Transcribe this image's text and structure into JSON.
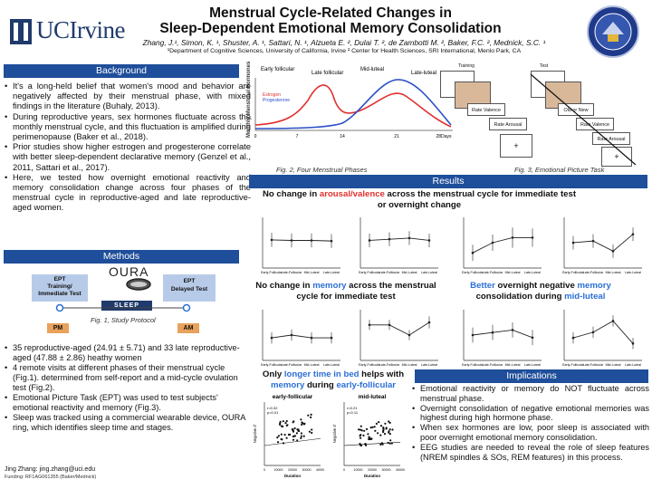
{
  "header": {
    "title_line1": "Menstrual Cycle-Related Changes in",
    "title_line2": "Sleep-Dependent Emotional Memory Consolidation",
    "authors": "Zhang, J.¹, Simon, K. ¹, Shuster, A. ¹, Sattari, N. ¹, Alzueta E. ², Dulai T. ², de Zambotti M. ², Baker, F.C. ², Mednick, S.C. ¹",
    "affiliation": "¹Department of Cognitive Sciences, University of California, Irvine ² Center for Health Sciences, SRI International, Menlo Park, CA",
    "logo_text": "UCIrvine"
  },
  "background": {
    "heading": "Background",
    "bullets": [
      "It's a long-held belief that women's mood and behavior are negatively affected by their menstrual phase, with mixed findings in the literature (Buhaly, 2013).",
      "During reproductive years, sex hormones fluctuate across the monthly menstrual cycle, and this fluctuation is amplified during perimenopause (Baker et al., 2018).",
      "Prior studies show higher estrogen and progesterone correlate with better sleep-dependent declarative memory (Genzel et al., 2011, Sattari et al., 2017).",
      "Here, we tested how overnight emotional reactivity and memory consolidation change across four phases of the menstrual cycle in reproductive-aged and late reproductive-aged women."
    ]
  },
  "methods": {
    "heading": "Methods",
    "oura": "OURA",
    "ept1": "EPT\nTraining/\nImmediate Test",
    "ept2": "EPT\nDelayed Test",
    "sleep": "SLEEP",
    "pm": "PM",
    "am": "AM",
    "fig1": "Fig. 1, Study Protocol",
    "bullets": [
      "35 reproductive-aged (24.91 ± 5.71) and 33 late reproductive-aged (47.88 ± 2.86) heathy women",
      "4 remote visits at different phases of their menstrual cycle (Fig.1). determined from self-report and a mid-cycle ovulation test (Fig.2).",
      "Emotional Picture Task (EPT) was used to test subjects' emotional reactivity and memory (Fig.3).",
      "Sleep was tracked using a commercial wearable device, OURA ring, which identifies sleep time and stages."
    ],
    "contact": "Jing Zhang: jing.zhang@uci.edu",
    "funding": "Funding: RF1AG061355 (Baker/Mednick)"
  },
  "fig2": {
    "caption": "Fig. 2, Four Menstrual Phases",
    "ylabel": "Monthly Menstrual Hormones",
    "phases": [
      "Early follicular",
      "Late follicular",
      "Mid-luteal",
      "Late-luteal"
    ],
    "legend": [
      "Estrogen",
      "Progesterone"
    ],
    "xticks": [
      "0",
      "7",
      "14",
      "21",
      "28Days"
    ]
  },
  "fig3": {
    "caption": "Fig. 3, Emotional Picture Task",
    "training": "Training",
    "test": "Test",
    "rate_valence": "Rate Valence",
    "rate_arousal": "Rate Arousal",
    "old_new": "Old or New",
    "plus": "+"
  },
  "results": {
    "heading": "Results",
    "r1_pre": "No change in ",
    "r1_hl": "arousal/valence",
    "r1_post": " across the menstrual cycle for immediate test or overnight change",
    "r2_pre": "No change in ",
    "r2_hl": "memory",
    "r2_post": " across the menstrual cycle for immediate test",
    "r3_a": "Better",
    "r3_b": " overnight negative ",
    "r3_c": "memory",
    "r3_d": " consolidation during ",
    "r3_e": "mid-luteal",
    "r4_a": "Only ",
    "r4_b": "longer time in bed",
    "r4_c": " helps with ",
    "r4_d": "memory",
    "r4_e": " during ",
    "r4_f": "early-follicular",
    "xcats": [
      "Early-Follicular",
      "Late-Follicular",
      "Mid-Luteal",
      "Late-Luteal"
    ],
    "scatter1_title": "early-follicular",
    "scatter2_title": "mid-luteal",
    "scatter1_stats": "r=0.32\np=0.01",
    "scatter2_stats": "r=0.21\np=0.11",
    "scatter_xlabel": "Duration",
    "scatter_ylabel": "Negative d'",
    "scatter_xticks": [
      "0",
      "10000",
      "20000",
      "30000",
      "40000"
    ]
  },
  "implications": {
    "heading": "Implications",
    "bullets": [
      "Emotional reactivity or memory do NOT fluctuate across menstrual phase.",
      "Overnight consolidation of negative emotional memories was highest during high hormone phase.",
      "When sex hormones are low, poor sleep is associated with poor overnight emotional memory consolidation.",
      "EEG studies are needed to reveal the role of sleep features (NREM spindles & SOs, REM features) in this process."
    ]
  },
  "colors": {
    "heading_bg": "#1f4e9a",
    "accent_blue": "#2b6fd6",
    "accent_red": "#e03030"
  }
}
